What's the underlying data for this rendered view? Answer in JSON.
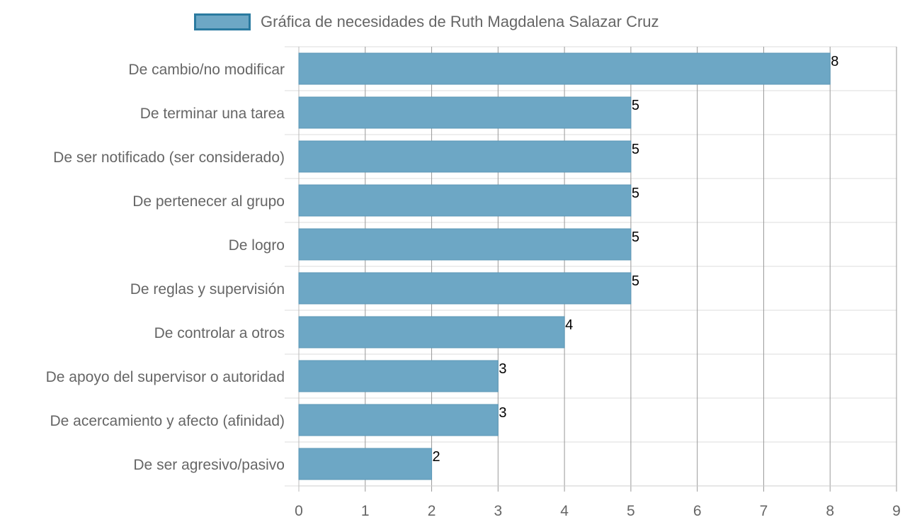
{
  "colors": {
    "bar_fill": "#6da7c5",
    "bar_stroke": "#5b97b6",
    "legend_border": "#2a7aa0",
    "grid": "#999999",
    "text": "#666666"
  },
  "chart_data": {
    "type": "bar",
    "orientation": "horizontal",
    "legend_position": "top",
    "grid": true,
    "xlim": [
      0,
      9
    ],
    "x_ticks": [
      "0",
      "1",
      "2",
      "3",
      "4",
      "5",
      "6",
      "7",
      "8",
      "9"
    ],
    "categories": [
      "De cambio/no modificar",
      "De terminar una tarea",
      "De ser notificado (ser considerado)",
      "De pertenecer al grupo",
      "De logro",
      "De reglas y supervisión",
      "De controlar a otros",
      "De apoyo del supervisor o autoridad",
      "De acercamiento y afecto (afinidad)",
      "De ser agresivo/pasivo"
    ],
    "series": [
      {
        "name": "Gráfica de necesidades de Ruth Magdalena Salazar Cruz",
        "values": [
          8,
          5,
          5,
          5,
          5,
          5,
          4,
          3,
          3,
          2
        ]
      }
    ]
  }
}
